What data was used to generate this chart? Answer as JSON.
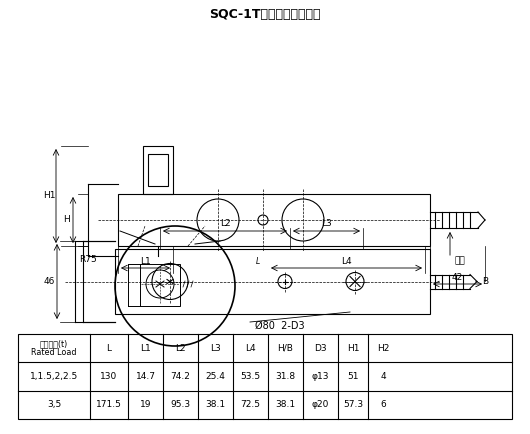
{
  "title": "SQC-1T称重传感器尺寸图",
  "bg_color": "#ffffff",
  "line_color": "#000000",
  "table_headers": [
    "额定载荷(t)\nRated Load",
    "L",
    "L1",
    "L2",
    "L3",
    "L4",
    "H/B",
    "D3",
    "H1",
    "H2"
  ],
  "table_rows": [
    [
      "1,1.5,2,2.5",
      "130",
      "14.7",
      "74.2",
      "25.4",
      "53.5",
      "31.8",
      "φ13",
      "51",
      "4"
    ],
    [
      "3,5",
      "171.5",
      "19",
      "95.3",
      "38.1",
      "72.5",
      "38.1",
      "φ20",
      "57.3",
      "6"
    ]
  ],
  "annotations": {
    "R75": "R75",
    "46": "46",
    "42": "42",
    "L2": "L2",
    "L3": "L3",
    "L1": "L1",
    "L4": "L4",
    "H1": "H1",
    "H": "H",
    "B": "B",
    "dia80": "Ø80  2-D3",
    "gasket": "垫片"
  }
}
